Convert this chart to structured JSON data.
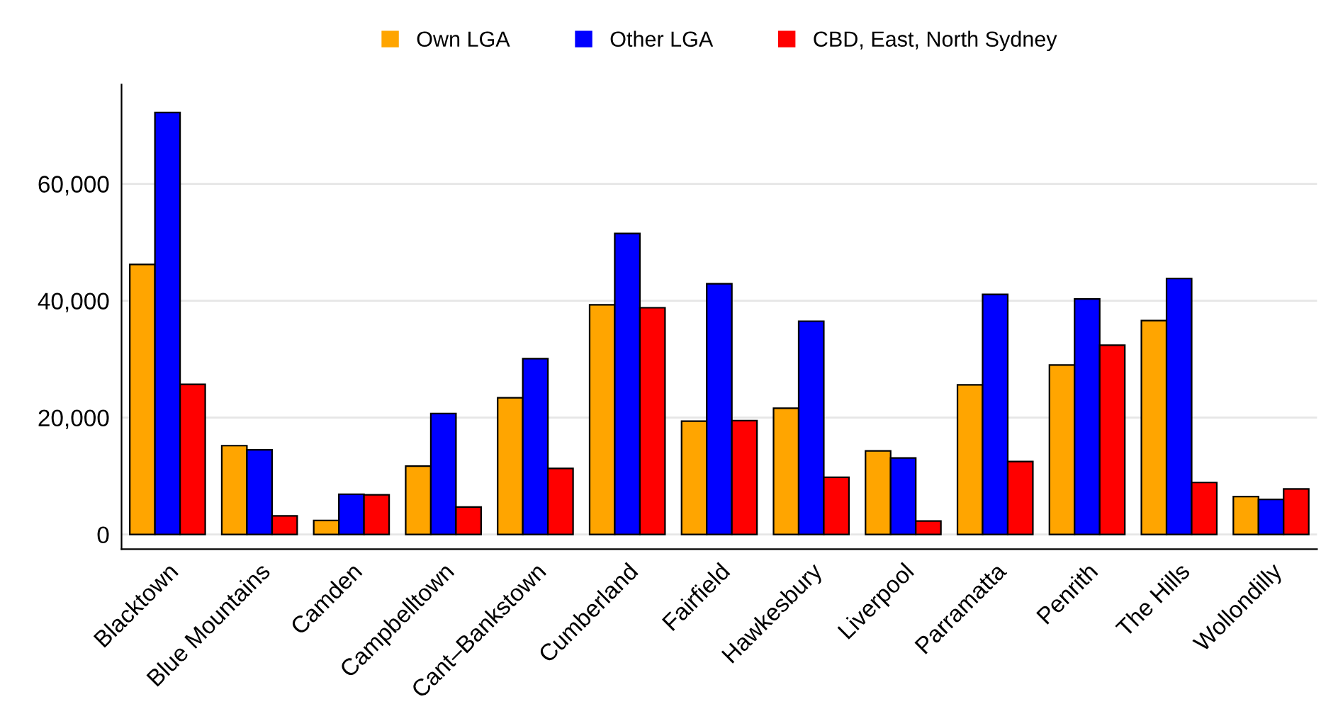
{
  "chart_data": {
    "type": "bar",
    "categories": [
      "Blacktown",
      "Blue Mountains",
      "Camden",
      "Campbelltown",
      "Cant–Bankstown",
      "Cumberland",
      "Fairfield",
      "Hawkesbury",
      "Liverpool",
      "Parramatta",
      "Penrith",
      "The Hills",
      "Wollondilly"
    ],
    "series": [
      {
        "name": "Own LGA",
        "color": "#ffa500",
        "values": [
          46200,
          15200,
          2400,
          11700,
          23400,
          39300,
          19400,
          21600,
          14300,
          25600,
          29000,
          36600,
          6500
        ]
      },
      {
        "name": "Other LGA",
        "color": "#0000ff",
        "values": [
          72200,
          14500,
          6900,
          20700,
          30100,
          51500,
          42900,
          36500,
          13100,
          41100,
          40300,
          43800,
          6000
        ]
      },
      {
        "name": "CBD, East, North Sydney",
        "color": "#ff0000",
        "values": [
          25700,
          3200,
          6800,
          4700,
          11300,
          38800,
          19500,
          9800,
          2300,
          12500,
          32400,
          8900,
          7800
        ]
      }
    ],
    "ylim": [
      -2500,
      77000
    ],
    "yticks": [
      0,
      {
        "value": 20000,
        "label": "20,000"
      },
      {
        "value": 40000,
        "label": "40,000"
      },
      {
        "value": 60000,
        "label": "60,000"
      }
    ],
    "grid": "y",
    "legend": "top"
  }
}
